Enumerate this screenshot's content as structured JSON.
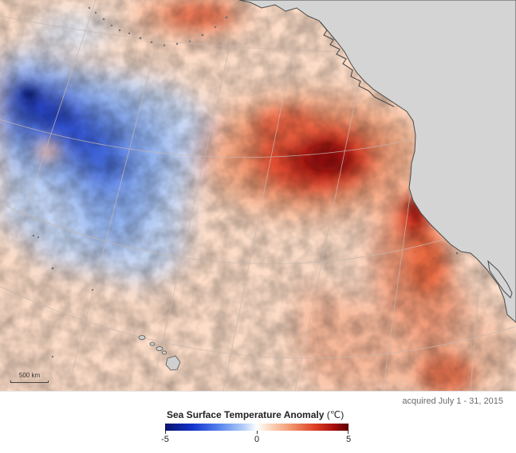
{
  "map": {
    "scale_bar_label": "500 km",
    "acquired_text": "acquired July 1 - 31, 2015",
    "colors": {
      "land": "#d4d4d4",
      "coastline": "#4a4a4a",
      "graticule": "#c8b8ae",
      "cold_extreme": "#08136b",
      "neutral": "#ffffff",
      "warm_extreme": "#5e0000"
    }
  },
  "legend": {
    "title": "Sea Surface Temperature Anomaly",
    "unit": "(℃)",
    "min_label": "-5",
    "mid_label": "0",
    "max_label": "5"
  }
}
